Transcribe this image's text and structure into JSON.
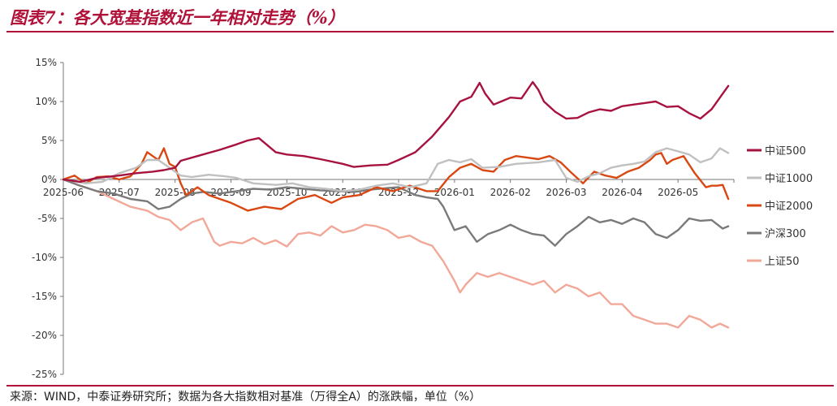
{
  "header": {
    "title": "图表7：各大宽基指数近一年相对走势（%）"
  },
  "footer": {
    "source": "来源：WIND，中泰证券研究所；数据为各大指数相对基准（万得全A）的涨跌幅，单位（%）"
  },
  "chart_data": {
    "type": "line",
    "title": "",
    "xlabel": "",
    "ylabel": "",
    "ylim": [
      -25,
      15
    ],
    "yticks": [
      -25,
      -20,
      -15,
      -10,
      -5,
      0,
      5,
      10,
      15
    ],
    "ytick_labels": [
      "-25%",
      "-20%",
      "-15%",
      "-10%",
      "-5%",
      "0%",
      "5%",
      "10%",
      "15%"
    ],
    "x_ticks": [
      "2025-06",
      "2025-07",
      "2025-08",
      "2025-09",
      "2025-10",
      "2025-11",
      "2025-12",
      "2026-01",
      "2026-02",
      "2026-03",
      "2026-04",
      "2026-05"
    ],
    "xlim": [
      0,
      12
    ],
    "grid": false,
    "legend_position": "right",
    "series": [
      {
        "name": "中证500",
        "color": "#a8123f",
        "x": [
          0,
          0.3,
          0.6,
          1.0,
          1.3,
          1.6,
          1.8,
          2.0,
          2.1,
          2.4,
          2.8,
          3.1,
          3.3,
          3.5,
          3.8,
          4.0,
          4.3,
          4.6,
          5.0,
          5.2,
          5.5,
          5.8,
          6.0,
          6.3,
          6.6,
          6.9,
          7.1,
          7.3,
          7.45,
          7.55,
          7.7,
          7.9,
          8.0,
          8.2,
          8.4,
          8.5,
          8.6,
          8.8,
          9.0,
          9.2,
          9.4,
          9.6,
          9.8,
          10.0,
          10.2,
          10.4,
          10.6,
          10.8,
          11.0,
          11.2,
          11.4,
          11.6,
          11.75,
          11.9
        ],
        "y": [
          0,
          -0.3,
          0.2,
          0.5,
          0.8,
          1.0,
          1.2,
          1.5,
          2.4,
          3.0,
          3.8,
          4.5,
          5.0,
          5.3,
          3.5,
          3.2,
          3.0,
          2.6,
          2.0,
          1.6,
          1.8,
          1.9,
          2.5,
          3.5,
          5.5,
          8.0,
          10.0,
          10.6,
          12.4,
          11.0,
          9.6,
          10.2,
          10.5,
          10.4,
          12.5,
          11.5,
          10.0,
          8.7,
          7.8,
          7.9,
          8.6,
          9.0,
          8.8,
          9.4,
          9.6,
          9.8,
          10.0,
          9.3,
          9.4,
          8.5,
          7.8,
          9.0,
          10.5,
          12.0
        ]
      },
      {
        "name": "中证1000",
        "color": "#c0c0c0",
        "x": [
          0,
          0.4,
          0.7,
          1.0,
          1.3,
          1.5,
          1.7,
          2.0,
          2.1,
          2.3,
          2.6,
          2.9,
          3.1,
          3.4,
          3.8,
          4.1,
          4.4,
          4.7,
          5.0,
          5.3,
          5.6,
          5.9,
          6.2,
          6.5,
          6.7,
          6.9,
          7.1,
          7.3,
          7.5,
          7.8,
          8.1,
          8.5,
          8.8,
          9.0,
          9.2,
          9.4,
          9.6,
          9.8,
          10.0,
          10.2,
          10.4,
          10.6,
          10.8,
          11.0,
          11.2,
          11.4,
          11.6,
          11.75,
          11.9
        ],
        "y": [
          0,
          -0.5,
          -0.3,
          0.8,
          1.5,
          2.5,
          2.5,
          1.0,
          0.5,
          0.3,
          0.6,
          0.4,
          0.2,
          -0.5,
          -0.7,
          -0.5,
          -1.0,
          -1.2,
          -1.5,
          -1.3,
          -0.8,
          -0.5,
          -1.0,
          -0.5,
          2.0,
          2.5,
          2.2,
          2.6,
          1.5,
          1.6,
          2.0,
          2.2,
          2.5,
          0.2,
          -0.3,
          0.4,
          0.8,
          1.5,
          1.8,
          2.0,
          2.3,
          3.5,
          4.0,
          3.6,
          3.2,
          2.2,
          2.7,
          4.0,
          3.4
        ]
      },
      {
        "name": "中证2000",
        "color": "#d94812",
        "x": [
          0,
          0.2,
          0.4,
          0.6,
          0.8,
          1.0,
          1.2,
          1.4,
          1.5,
          1.6,
          1.7,
          1.8,
          1.9,
          2.0,
          2.1,
          2.2,
          2.4,
          2.6,
          2.8,
          3.0,
          3.3,
          3.6,
          3.9,
          4.2,
          4.5,
          4.8,
          5.0,
          5.3,
          5.6,
          5.9,
          6.2,
          6.5,
          6.7,
          6.9,
          7.1,
          7.3,
          7.5,
          7.7,
          7.9,
          8.1,
          8.3,
          8.5,
          8.7,
          8.9,
          9.1,
          9.3,
          9.5,
          9.7,
          9.9,
          10.1,
          10.3,
          10.5,
          10.6,
          10.7,
          10.8,
          10.9,
          11.1,
          11.3,
          11.5,
          11.6,
          11.7,
          11.8,
          11.9
        ],
        "y": [
          0,
          0.5,
          -0.5,
          0.3,
          0.4,
          0.0,
          0.4,
          2.0,
          3.5,
          3.0,
          2.5,
          4.0,
          2.0,
          1.6,
          -0.5,
          -2.0,
          -1.0,
          -2.0,
          -2.5,
          -3.0,
          -4.0,
          -3.5,
          -3.8,
          -2.5,
          -2.0,
          -3.0,
          -2.3,
          -2.0,
          -1.0,
          -1.5,
          -0.8,
          -1.5,
          -1.5,
          0.3,
          1.5,
          2.0,
          1.2,
          1.0,
          2.5,
          3.0,
          2.8,
          2.6,
          3.0,
          2.2,
          0.8,
          -0.5,
          1.0,
          0.5,
          0.2,
          1.0,
          1.5,
          2.5,
          3.2,
          3.4,
          2.0,
          2.5,
          3.0,
          0.8,
          -1.0,
          -0.8,
          -0.8,
          -0.7,
          -2.5
        ]
      },
      {
        "name": "沪深300",
        "color": "#7a7a7a",
        "x": [
          0,
          0.3,
          0.6,
          0.9,
          1.2,
          1.5,
          1.7,
          1.9,
          2.1,
          2.3,
          2.5,
          2.8,
          3.1,
          3.4,
          3.7,
          4.0,
          4.3,
          4.6,
          4.9,
          5.2,
          5.5,
          5.8,
          6.0,
          6.3,
          6.5,
          6.7,
          6.8,
          7.0,
          7.2,
          7.4,
          7.6,
          7.8,
          8.0,
          8.2,
          8.4,
          8.6,
          8.8,
          9.0,
          9.2,
          9.4,
          9.6,
          9.8,
          10.0,
          10.2,
          10.4,
          10.6,
          10.8,
          11.0,
          11.2,
          11.4,
          11.6,
          11.8,
          11.9
        ],
        "y": [
          0,
          -0.8,
          -1.5,
          -1.8,
          -2.5,
          -2.8,
          -3.8,
          -3.5,
          -2.5,
          -1.8,
          -1.6,
          -1.8,
          -1.5,
          -1.2,
          -1.3,
          -1.0,
          -1.2,
          -1.4,
          -1.5,
          -1.6,
          -1.3,
          -1.1,
          -1.0,
          -2.0,
          -2.3,
          -2.5,
          -3.5,
          -6.5,
          -6.0,
          -8.0,
          -7.0,
          -6.5,
          -5.8,
          -6.5,
          -7.0,
          -7.2,
          -8.5,
          -7.0,
          -6.0,
          -4.8,
          -5.5,
          -5.2,
          -5.7,
          -5.0,
          -5.5,
          -7.0,
          -7.5,
          -6.5,
          -5.0,
          -5.3,
          -5.2,
          -6.3,
          -6.0
        ]
      },
      {
        "name": "上证50",
        "color": "#f2a898",
        "x": [
          0,
          0.3,
          0.6,
          0.9,
          1.2,
          1.5,
          1.7,
          1.9,
          2.1,
          2.3,
          2.5,
          2.7,
          2.8,
          3.0,
          3.2,
          3.4,
          3.6,
          3.8,
          4.0,
          4.2,
          4.4,
          4.6,
          4.8,
          5.0,
          5.2,
          5.4,
          5.6,
          5.8,
          6.0,
          6.2,
          6.4,
          6.6,
          6.7,
          6.8,
          7.0,
          7.1,
          7.2,
          7.4,
          7.6,
          7.8,
          8.0,
          8.2,
          8.4,
          8.6,
          8.8,
          9.0,
          9.2,
          9.4,
          9.6,
          9.8,
          10.0,
          10.2,
          10.4,
          10.6,
          10.8,
          11.0,
          11.2,
          11.4,
          11.6,
          11.75,
          11.9
        ],
        "y": [
          0,
          -0.8,
          -1.5,
          -2.5,
          -3.5,
          -4.0,
          -4.8,
          -5.2,
          -6.5,
          -5.5,
          -5.0,
          -8.0,
          -8.5,
          -8.0,
          -8.2,
          -7.5,
          -8.3,
          -7.8,
          -8.6,
          -7.0,
          -6.8,
          -7.2,
          -6.0,
          -6.8,
          -6.5,
          -5.8,
          -6.0,
          -6.5,
          -7.5,
          -7.2,
          -8.0,
          -8.5,
          -9.5,
          -10.5,
          -13.0,
          -14.5,
          -13.5,
          -12.0,
          -12.5,
          -12.0,
          -12.5,
          -13.0,
          -13.5,
          -13.0,
          -14.5,
          -13.5,
          -14.0,
          -15.0,
          -14.5,
          -16.0,
          -16.0,
          -17.5,
          -18.0,
          -18.5,
          -18.5,
          -19.0,
          -17.5,
          -18.0,
          -19.0,
          -18.5,
          -19.0
        ]
      }
    ]
  }
}
